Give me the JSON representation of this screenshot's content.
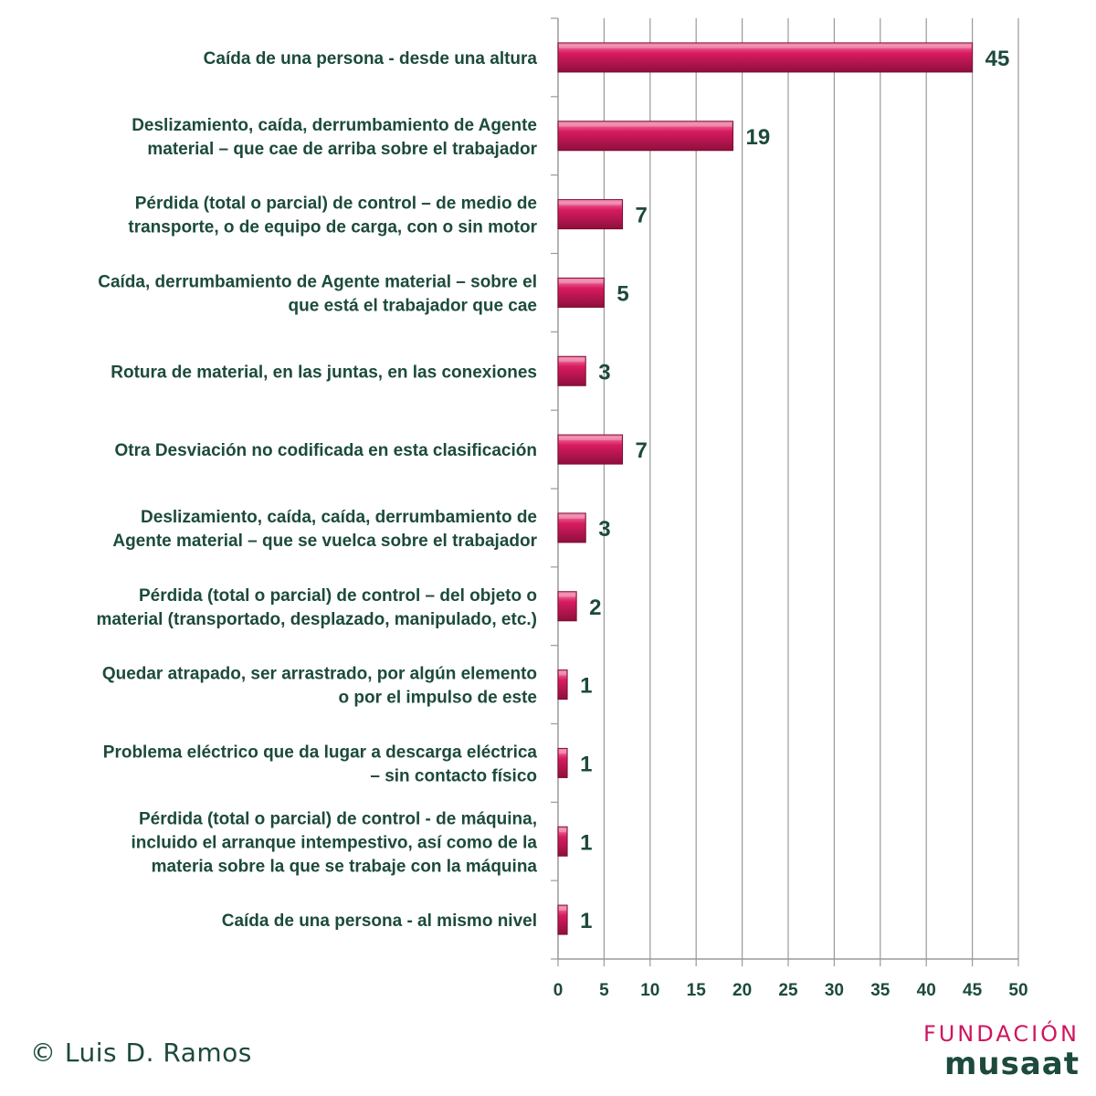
{
  "chart_data": {
    "type": "bar",
    "orientation": "horizontal",
    "categories": [
      "Caída de una persona - desde una altura",
      "Deslizamiento, caída, derrumbamiento de Agente material – que cae de arriba sobre el trabajador",
      "Pérdida (total o parcial) de control – de medio de transporte, o de equipo de carga, con o sin motor",
      "Caída, derrumbamiento de Agente material – sobre el que está el trabajador que cae",
      "Rotura de material, en las juntas, en las conexiones",
      "Otra Desviación no codificada en esta clasificación",
      "Deslizamiento, caída, caída, derrumbamiento de Agente material – que se vuelca sobre el trabajador",
      "Pérdida (total o parcial) de control – del objeto o material (transportado, desplazado, manipulado, etc.)",
      "Quedar atrapado, ser arrastrado, por algún elemento o por el impulso de este",
      "Problema eléctrico que da lugar a descarga eléctrica – sin contacto físico",
      "Pérdida (total o parcial) de control - de máquina, incluido el arranque intempestivo, así como de la materia sobre la que se trabaje con la máquina",
      "Caída de una persona - al mismo nivel"
    ],
    "category_lines": [
      [
        "Caída de una persona - desde una altura"
      ],
      [
        "Deslizamiento, caída, derrumbamiento de Agente",
        "material – que cae de arriba sobre el trabajador"
      ],
      [
        "Pérdida (total o parcial) de control – de medio de",
        "transporte, o de equipo de carga, con o sin motor"
      ],
      [
        "Caída, derrumbamiento de Agente material – sobre el",
        "que está el trabajador que cae"
      ],
      [
        "Rotura de material, en las juntas, en las conexiones"
      ],
      [
        "Otra Desviación no codificada en esta clasificación"
      ],
      [
        "Deslizamiento, caída, caída, derrumbamiento de",
        "Agente material – que se vuelca sobre el trabajador"
      ],
      [
        "Pérdida (total o parcial) de control – del objeto o",
        "material (transportado, desplazado, manipulado, etc.)"
      ],
      [
        "Quedar atrapado, ser arrastrado, por algún elemento",
        "o por el impulso de este"
      ],
      [
        "Problema eléctrico que da lugar a descarga eléctrica",
        "– sin contacto físico"
      ],
      [
        "Pérdida (total o parcial) de control - de máquina,",
        "incluido el arranque intempestivo, así como de la",
        "materia sobre la que se trabaje con la máquina"
      ],
      [
        "Caída de una persona - al mismo nivel"
      ]
    ],
    "values": [
      45,
      19,
      7,
      5,
      3,
      7,
      3,
      2,
      1,
      1,
      1,
      1
    ],
    "xlim": [
      0,
      50
    ],
    "xticks": [
      0,
      5,
      10,
      15,
      20,
      25,
      30,
      35,
      40,
      45,
      50
    ],
    "grid": true,
    "colors": {
      "bar": "#d81b60",
      "bar_light": "#f06292",
      "bar_dark": "#8e0f3c",
      "text": "#1c4a3c",
      "grid": "#9a9a9a"
    }
  },
  "footer": {
    "credit": "© Luis D. Ramos",
    "logo_line1": "FUNDACIÓN",
    "logo_line2": "musaat"
  }
}
